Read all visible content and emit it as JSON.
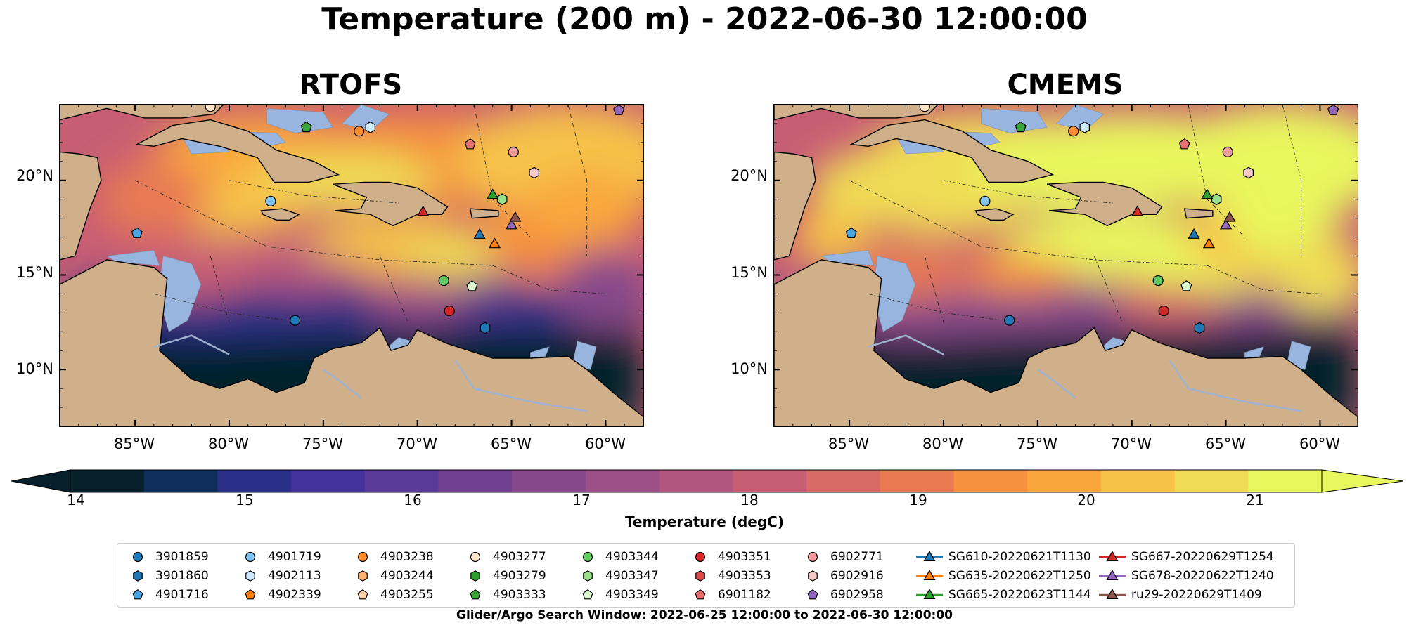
{
  "title": "Temperature (200 m) - 2022-06-30 12:00:00",
  "panels": [
    {
      "title": "RTOFS"
    },
    {
      "title": "CMEMS"
    }
  ],
  "latitude_labels": [
    "20°N",
    "15°N",
    "10°N"
  ],
  "longitude_labels": [
    "85°W",
    "80°W",
    "75°W",
    "70°W",
    "65°W",
    "60°W"
  ],
  "map_extent": {
    "lon": [
      -89,
      -58
    ],
    "lat": [
      7,
      24
    ]
  },
  "colorbar": {
    "label": "Temperature (degC)",
    "ticks": [
      "14",
      "15",
      "16",
      "17",
      "18",
      "19",
      "20",
      "21"
    ],
    "range": [
      14,
      21.5
    ],
    "extend": "both",
    "colors": [
      "#06202c",
      "#0e2e5c",
      "#2a3087",
      "#43339a",
      "#5a3a99",
      "#70408f",
      "#86488b",
      "#9c4f86",
      "#b3567f",
      "#c75e74",
      "#d96a66",
      "#e97a52",
      "#f5913f",
      "#f9a73d",
      "#f6c248",
      "#efdb55",
      "#e8f75d"
    ]
  },
  "land_color": "#cfb08a",
  "shallow_water_color": "#98b5df",
  "legend": {
    "columns": [
      [
        {
          "label": "3901859",
          "marker": "circle",
          "color": "#1f77b4"
        },
        {
          "label": "3901860",
          "marker": "hexagon",
          "color": "#1f77b4"
        },
        {
          "label": "4901716",
          "marker": "pentagon",
          "color": "#4aa3df"
        }
      ],
      [
        {
          "label": "4901719",
          "marker": "circle",
          "color": "#7fc3ee"
        },
        {
          "label": "4902113",
          "marker": "hexagon",
          "color": "#cdeafc"
        },
        {
          "label": "4902339",
          "marker": "pentagon",
          "color": "#ff7f0e"
        }
      ],
      [
        {
          "label": "4903238",
          "marker": "circle",
          "color": "#ff8c2e"
        },
        {
          "label": "4903244",
          "marker": "hexagon",
          "color": "#ffb16e"
        },
        {
          "label": "4903255",
          "marker": "pentagon",
          "color": "#ffd3a8"
        }
      ],
      [
        {
          "label": "4903277",
          "marker": "circle",
          "color": "#ffe4cc"
        },
        {
          "label": "4903279",
          "marker": "hexagon",
          "color": "#2ca02c"
        },
        {
          "label": "4903333",
          "marker": "pentagon",
          "color": "#3aa63a"
        }
      ],
      [
        {
          "label": "4903344",
          "marker": "circle",
          "color": "#63c963"
        },
        {
          "label": "4903347",
          "marker": "hexagon",
          "color": "#98df8a"
        },
        {
          "label": "4903349",
          "marker": "pentagon",
          "color": "#d9f7cf"
        }
      ],
      [
        {
          "label": "4903351",
          "marker": "circle",
          "color": "#d62728"
        },
        {
          "label": "4903353",
          "marker": "hexagon",
          "color": "#dd4a4a"
        },
        {
          "label": "6901182",
          "marker": "pentagon",
          "color": "#e97070"
        }
      ],
      [
        {
          "label": "6902771",
          "marker": "circle",
          "color": "#f19c9c"
        },
        {
          "label": "6902916",
          "marker": "hexagon",
          "color": "#f7c8c8"
        },
        {
          "label": "6902958",
          "marker": "pentagon",
          "color": "#9467bd"
        }
      ],
      [
        {
          "label": "SG610-20220621T1130",
          "marker": "triangle",
          "color": "#1f77b4",
          "line": "#1f77b4"
        },
        {
          "label": "SG635-20220622T1250",
          "marker": "triangle",
          "color": "#ff7f0e",
          "line": "#ff7f0e"
        },
        {
          "label": "SG665-20220623T1144",
          "marker": "triangle",
          "color": "#2ca02c",
          "line": "#2ca02c"
        }
      ],
      [
        {
          "label": "SG667-20220629T1254",
          "marker": "triangle",
          "color": "#d62728",
          "line": "#d62728"
        },
        {
          "label": "SG678-20220622T1240",
          "marker": "triangle",
          "color": "#9467bd",
          "line": "#9467bd"
        },
        {
          "label": "ru29-20220629T1409",
          "marker": "triangle",
          "color": "#8c564b",
          "line": "#8c564b"
        }
      ]
    ]
  },
  "observations": [
    {
      "label": "3901859",
      "lon": -76.5,
      "lat": 12.6
    },
    {
      "label": "3901860",
      "lon": -66.4,
      "lat": 12.2
    },
    {
      "label": "4901716",
      "lon": -84.9,
      "lat": 17.2
    },
    {
      "label": "4901719",
      "lon": -77.8,
      "lat": 18.9
    },
    {
      "label": "4902113",
      "lon": -72.5,
      "lat": 22.8
    },
    {
      "label": "4903238",
      "lon": -73.1,
      "lat": 22.6
    },
    {
      "label": "4903277",
      "lon": -81.0,
      "lat": 23.9
    },
    {
      "label": "4903333",
      "lon": -75.9,
      "lat": 22.8
    },
    {
      "label": "4903344",
      "lon": -68.6,
      "lat": 14.7
    },
    {
      "label": "4903347",
      "lon": -65.5,
      "lat": 19.0
    },
    {
      "label": "4903349",
      "lon": -67.1,
      "lat": 14.4
    },
    {
      "label": "4903351",
      "lon": -68.3,
      "lat": 13.1
    },
    {
      "label": "6901182",
      "lon": -67.2,
      "lat": 21.9
    },
    {
      "label": "6902771",
      "lon": -64.9,
      "lat": 21.5
    },
    {
      "label": "6902916",
      "lon": -63.8,
      "lat": 20.4
    },
    {
      "label": "6902958",
      "lon": -59.3,
      "lat": 23.7
    },
    {
      "label": "SG610-20220621T1130",
      "lon": -66.7,
      "lat": 17.1
    },
    {
      "label": "SG635-20220622T1250",
      "lon": -65.9,
      "lat": 16.6
    },
    {
      "label": "SG665-20220623T1144",
      "lon": -66.0,
      "lat": 19.2
    },
    {
      "label": "SG667-20220629T1254",
      "lon": -69.7,
      "lat": 18.3
    },
    {
      "label": "SG678-20220622T1240",
      "lon": -65.0,
      "lat": 17.6
    },
    {
      "label": "ru29-20220629T1409",
      "lon": -64.8,
      "lat": 18.0
    }
  ],
  "footnote": "Glider/Argo Search Window: 2022-06-25 12:00:00 to 2022-06-30 12:00:00"
}
